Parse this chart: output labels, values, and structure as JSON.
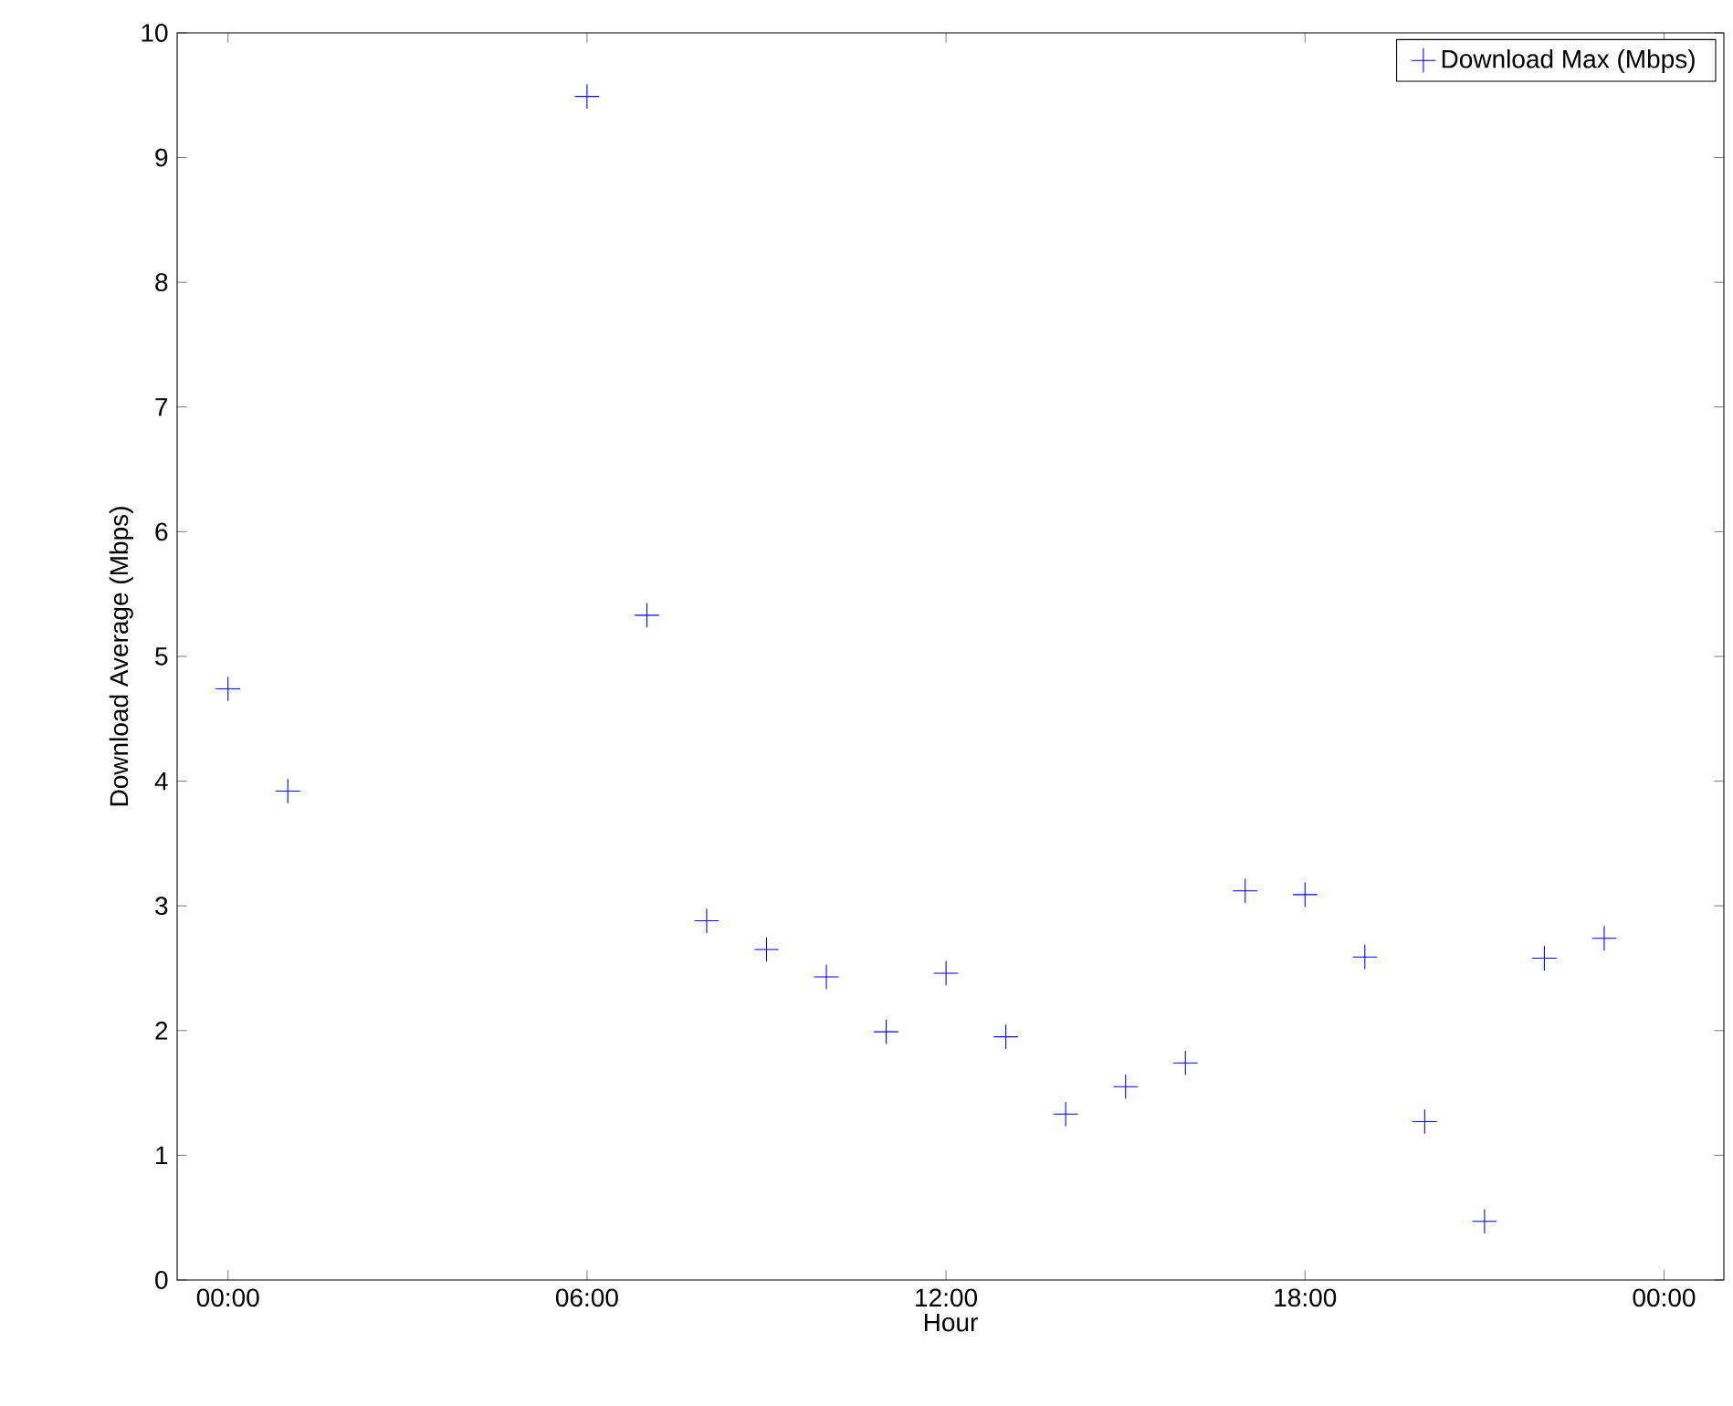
{
  "chart_data": {
    "type": "scatter",
    "xlabel": "Hour",
    "ylabel": "Download Average (Mbps)",
    "x": [
      0,
      1,
      6,
      7,
      8,
      9,
      10,
      11,
      12,
      13,
      14,
      15,
      16,
      17,
      18,
      19,
      20,
      21,
      22,
      23
    ],
    "series": [
      {
        "name": "Download Max (Mbps)",
        "color": "#0000ff",
        "values": [
          4.74,
          3.92,
          9.49,
          5.33,
          2.88,
          2.65,
          2.43,
          1.99,
          2.46,
          1.95,
          1.33,
          1.55,
          1.74,
          3.12,
          3.09,
          2.59,
          1.27,
          0.47,
          2.58,
          2.74
        ]
      }
    ],
    "xlim": [
      -0.85,
      25
    ],
    "ylim": [
      0,
      10
    ],
    "xticks": [
      {
        "value": 0,
        "label": "00:00"
      },
      {
        "value": 6,
        "label": "06:00"
      },
      {
        "value": 12,
        "label": "12:00"
      },
      {
        "value": 18,
        "label": "18:00"
      },
      {
        "value": 24,
        "label": "00:00"
      }
    ],
    "yticks": [
      0,
      1,
      2,
      3,
      4,
      5,
      6,
      7,
      8,
      9,
      10
    ],
    "marker": "cross",
    "legend": "top right",
    "grid": false
  }
}
